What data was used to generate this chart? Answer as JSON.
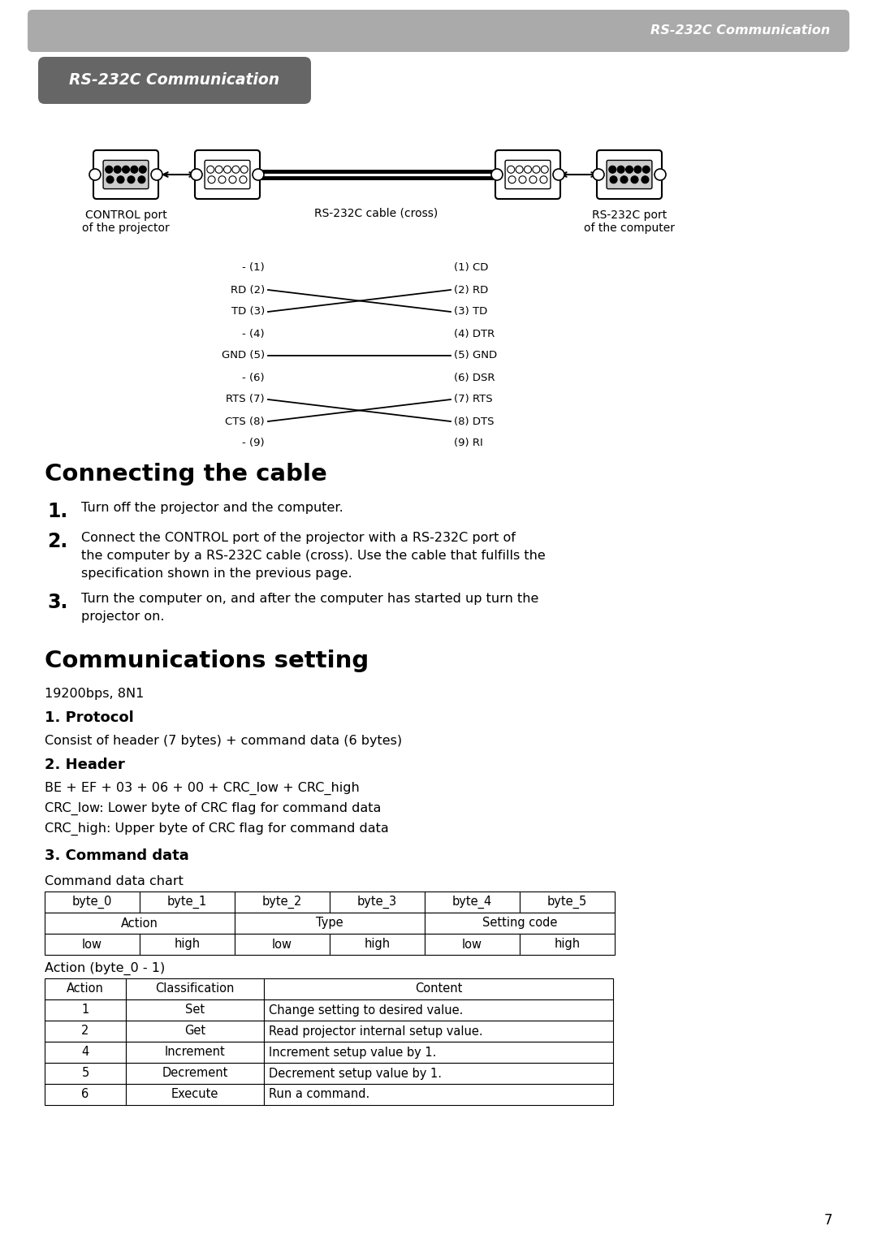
{
  "page_bg": "#ffffff",
  "header_bar_color": "#aaaaaa",
  "header_text": "RS-232C Communication",
  "header_text_color": "#ffffff",
  "title_box_color": "#666666",
  "title_box_text": "RS-232C Communication",
  "title_box_text_color": "#ffffff",
  "section1_title": "Connecting the cable",
  "section2_title": "Communications setting",
  "baud_rate": "19200bps, 8N1",
  "protocol_title": "1. Protocol",
  "protocol_text": "Consist of header (7 bytes) + command data (6 bytes)",
  "header_title": "2. Header",
  "header_line1": "BE + EF + 03 + 06 + 00 + CRC_low + CRC_high",
  "header_line2": "CRC_low: Lower byte of CRC flag for command data",
  "header_line3": "CRC_high: Upper byte of CRC flag for command data",
  "cmd_title": "3. Command data",
  "cmd_subtitle": "Command data chart",
  "table1_headers": [
    "byte_0",
    "byte_1",
    "byte_2",
    "byte_3",
    "byte_4",
    "byte_5"
  ],
  "table1_row3": [
    "low",
    "high",
    "low",
    "high",
    "low",
    "high"
  ],
  "action_label": "Action (byte_0 - 1)",
  "table2_headers": [
    "Action",
    "Classification",
    "Content"
  ],
  "table2_rows": [
    [
      "1",
      "Set",
      "Change setting to desired value."
    ],
    [
      "2",
      "Get",
      "Read projector internal setup value."
    ],
    [
      "4",
      "Increment",
      "Increment setup value by 1."
    ],
    [
      "5",
      "Decrement",
      "Decrement setup value by 1."
    ],
    [
      "6",
      "Execute",
      "Run a command."
    ]
  ],
  "connect_steps": [
    "Turn off the projector and the computer.",
    "Connect the CONTROL port of the projector with a RS-232C port of\nthe computer by a RS-232C cable (cross). Use the cable that fulfills the\nspecification shown in the previous page.",
    "Turn the computer on, and after the computer has started up turn the\nprojector on."
  ],
  "wiring_left": [
    "- (1)",
    "RD (2)",
    "TD (3)",
    "- (4)",
    "GND (5)",
    "- (6)",
    "RTS (7)",
    "CTS (8)",
    "- (9)"
  ],
  "wiring_right": [
    "(1) CD",
    "(2) RD",
    "(3) TD",
    "(4) DTR",
    "(5) GND",
    "(6) DSR",
    "(7) RTS",
    "(8) DTS",
    "(9) RI"
  ],
  "control_port_label": "CONTROL port\nof the projector",
  "cable_label": "RS-232C cable (cross)",
  "rs232c_port_label": "RS-232C port\nof the computer",
  "page_number": "7"
}
